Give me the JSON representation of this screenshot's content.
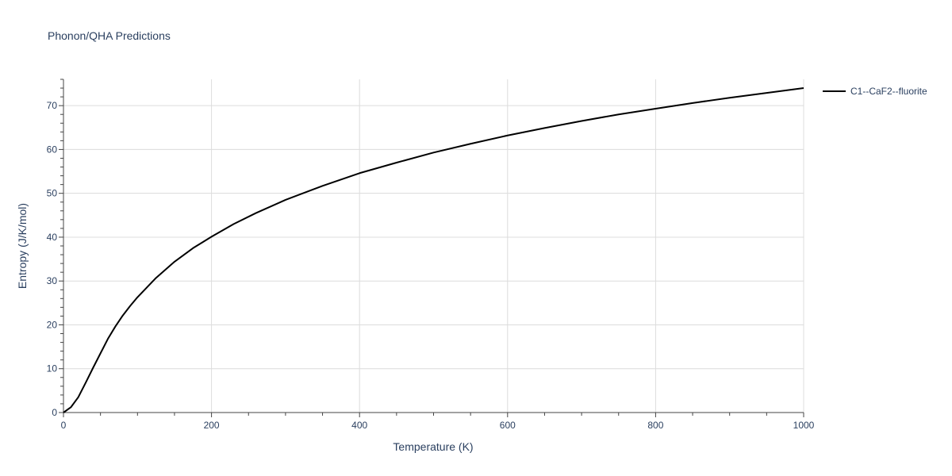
{
  "chart_data": {
    "type": "line",
    "title": "Phonon/QHA Predictions",
    "xlabel": "Temperature (K)",
    "ylabel": "Entropy (J/K/mol)",
    "xlim": [
      0,
      1000
    ],
    "ylim": [
      0,
      76
    ],
    "x_ticks": [
      0,
      200,
      400,
      600,
      800,
      1000
    ],
    "y_ticks": [
      0,
      10,
      20,
      30,
      40,
      50,
      60,
      70
    ],
    "grid": true,
    "legend_position": "top-right, outside plot",
    "series": [
      {
        "name": "C1--CaF2--fluorite",
        "color": "#000000",
        "x": [
          0,
          10,
          20,
          30,
          40,
          50,
          60,
          70,
          80,
          90,
          100,
          125,
          150,
          175,
          200,
          230,
          260,
          300,
          350,
          400,
          450,
          500,
          550,
          600,
          650,
          700,
          750,
          800,
          850,
          900,
          950,
          1000
        ],
        "y": [
          0,
          1.2,
          3.5,
          6.8,
          10.2,
          13.5,
          16.8,
          19.6,
          22.1,
          24.3,
          26.3,
          30.7,
          34.4,
          37.5,
          40.1,
          43.0,
          45.5,
          48.5,
          51.7,
          54.6,
          57.0,
          59.3,
          61.3,
          63.2,
          64.9,
          66.5,
          68.0,
          69.3,
          70.6,
          71.8,
          72.9,
          74.0
        ]
      }
    ]
  }
}
